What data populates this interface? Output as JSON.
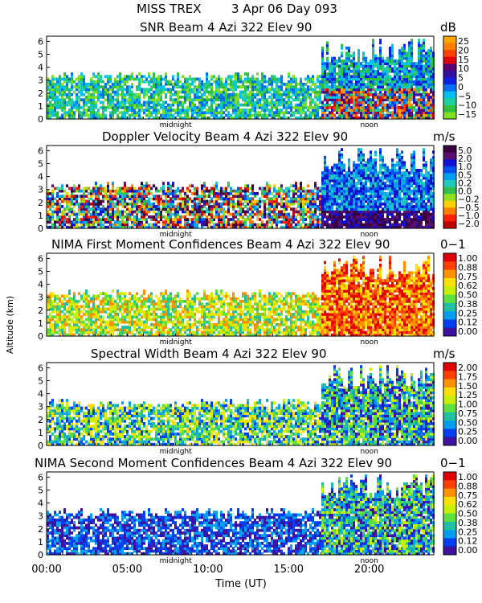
{
  "header": {
    "campaign": "MISS TREX",
    "date": "3 Apr 06 Day 093"
  },
  "axes": {
    "ylabel": "Altitude (km)",
    "xlabel": "Time (UT)",
    "xticks": [
      "00:00",
      "05:00",
      "10:00",
      "15:00",
      "20:00"
    ],
    "markers": {
      "midnight": "midnight",
      "noon": "noon"
    }
  },
  "chart_data": [
    {
      "type": "heatmap",
      "title": "SNR Beam 4 Azi 322 Elev 90",
      "unit": "dB",
      "x": [
        0,
        5,
        10,
        15,
        20
      ],
      "xlim": [
        0,
        24
      ],
      "ylim": [
        0,
        6.4
      ],
      "yticks": [
        "0",
        "1",
        "2",
        "3",
        "4",
        "5",
        "6"
      ],
      "colorbar_ticks": [
        "25",
        "20",
        "15",
        "10",
        "5",
        "0",
        "−5",
        "−10",
        "−15"
      ],
      "colors": [
        "#ffa500",
        "#ff8000",
        "#ff4000",
        "#e00000",
        "#5a0070",
        "#3010a0",
        "#1020e0",
        "#0070f0",
        "#00c0f0",
        "#20d0a0",
        "#30c040",
        "#80e020"
      ]
    },
    {
      "type": "heatmap",
      "title": "Doppler Velocity Beam 4 Azi 322 Elev 90",
      "unit": "m/s",
      "xlim": [
        0,
        24
      ],
      "ylim": [
        0,
        6.4
      ],
      "yticks": [
        "0",
        "1",
        "2",
        "3",
        "4",
        "5",
        "6"
      ],
      "colorbar_ticks": [
        "5.0",
        "2.0",
        "1.0",
        "0.5",
        "0.2",
        "0.0",
        "−0.2",
        "−0.5",
        "−1.0",
        "−2.0"
      ],
      "colors": [
        "#3a0040",
        "#5a1070",
        "#1010d0",
        "#0050f0",
        "#00a0f0",
        "#20c8c0",
        "#30c050",
        "#90e020",
        "#ffd000",
        "#ff8000",
        "#ff2000",
        "#c00000"
      ]
    },
    {
      "type": "heatmap",
      "title": "NIMA First Moment Confidences Beam 4 Azi 322 Elev 90",
      "unit": "0−1",
      "xlim": [
        0,
        24
      ],
      "ylim": [
        0,
        6.4
      ],
      "yticks": [
        "0",
        "1",
        "2",
        "3",
        "4",
        "5",
        "6"
      ],
      "colorbar_ticks": [
        "1.00",
        "0.88",
        "0.75",
        "0.62",
        "0.50",
        "0.38",
        "0.25",
        "0.12",
        "0.00"
      ],
      "colors": [
        "#e00000",
        "#ff4000",
        "#ff9000",
        "#ffe000",
        "#c8f000",
        "#60e040",
        "#20c0a0",
        "#00a0f0",
        "#0040f0",
        "#4010a0"
      ]
    },
    {
      "type": "heatmap",
      "title": "Spectral Width Beam 4 Azi 322 Elev 90",
      "unit": "m/s",
      "xlim": [
        0,
        24
      ],
      "ylim": [
        0,
        6.4
      ],
      "yticks": [
        "0",
        "1",
        "2",
        "3",
        "4",
        "5",
        "6"
      ],
      "colorbar_ticks": [
        "2.00",
        "1.75",
        "1.50",
        "1.25",
        "1.00",
        "0.75",
        "0.50",
        "0.25",
        "0.00"
      ],
      "colors": [
        "#e00000",
        "#ff4000",
        "#ff9000",
        "#ffe000",
        "#c8f000",
        "#60e040",
        "#20c0a0",
        "#00a0f0",
        "#0040f0",
        "#4010a0"
      ]
    },
    {
      "type": "heatmap",
      "title": "NIMA Second Moment Confidences Beam 4 Azi 322 Elev 90",
      "unit": "0−1",
      "xlim": [
        0,
        24
      ],
      "ylim": [
        0,
        6.4
      ],
      "yticks": [
        "0",
        "1",
        "2",
        "3",
        "4",
        "5",
        "6"
      ],
      "colorbar_ticks": [
        "1.00",
        "0.88",
        "0.75",
        "0.62",
        "0.50",
        "0.38",
        "0.25",
        "0.12",
        "0.00"
      ],
      "colors": [
        "#e00000",
        "#ff4000",
        "#ff9000",
        "#ffe000",
        "#c8f000",
        "#60e040",
        "#20c0a0",
        "#00a0f0",
        "#0040f0",
        "#4010a0"
      ]
    }
  ]
}
